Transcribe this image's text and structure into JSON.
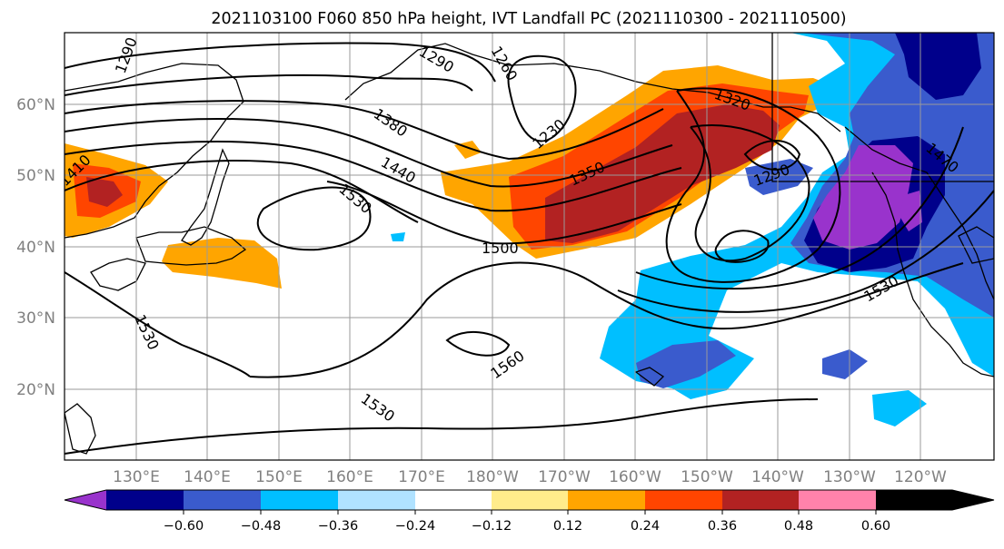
{
  "title": "2021103100 F060 850 hPa height, IVT Landfall PC (2021110300 - 2021110500)",
  "map": {
    "lat_labels": [
      "60°N",
      "50°N",
      "40°N",
      "30°N",
      "20°N"
    ],
    "lon_labels": [
      "130°E",
      "140°E",
      "150°E",
      "160°E",
      "170°E",
      "180°W",
      "170°W",
      "160°W",
      "150°W",
      "140°W",
      "130°W",
      "120°W"
    ],
    "contour_labels": [
      "1290",
      "1290",
      "1260",
      "1230",
      "1380",
      "1440",
      "1530",
      "1410",
      "1350",
      "1320",
      "1290",
      "1500",
      "1470",
      "1530",
      "1530",
      "1560",
      "1530"
    ]
  },
  "colorbar": {
    "colors": [
      "#9933cc",
      "#00008b",
      "#3a5bcd",
      "#00bfff",
      "#b0e2ff",
      "#ffffff",
      "#ffec8b",
      "#ffa500",
      "#ff4500",
      "#b22222",
      "#ff82ab"
    ],
    "tick_labels": [
      "−0.60",
      "−0.48",
      "−0.36",
      "−0.24",
      "−0.12",
      "0.12",
      "0.24",
      "0.36",
      "0.48",
      "0.60"
    ]
  }
}
